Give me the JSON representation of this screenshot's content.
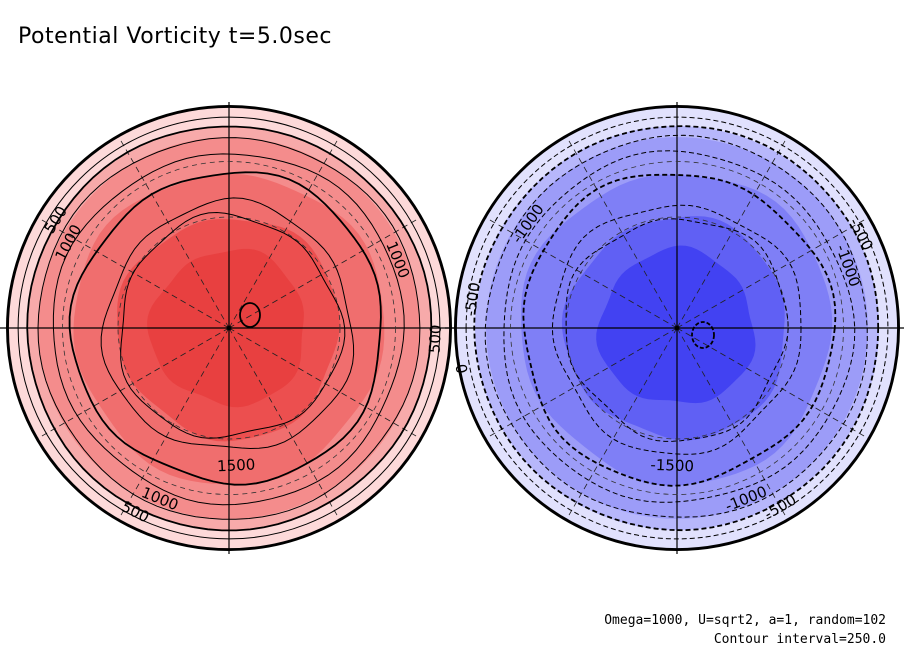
{
  "title": "Potential Vorticity t=5.0sec",
  "footer": {
    "params": "Omega=1000, U=sqrt2, a=1, random=102",
    "interval": "Contour interval=250.0"
  },
  "colors": {
    "positive": [
      "#fdd9d9",
      "#f7aaaa",
      "#f48c8c",
      "#f06e6e",
      "#ec4f4f",
      "#e84040"
    ],
    "negative": [
      "#e1e1fd",
      "#b7b7fb",
      "#9c9cf8",
      "#7f7ff6",
      "#6060f4",
      "#4242f2"
    ]
  },
  "hemispheres": [
    {
      "name": "northern",
      "sign": "positive",
      "labels": [
        {
          "text": "500",
          "r": 0.92,
          "angle": 148
        },
        {
          "text": "1000",
          "r": 0.82,
          "angle": 152
        },
        {
          "text": "1000",
          "r": 0.82,
          "angle": 22
        },
        {
          "text": "500",
          "r": 0.93,
          "angle": -3
        },
        {
          "text": "1500",
          "r": 0.62,
          "angle": -87
        },
        {
          "text": "1000",
          "r": 0.83,
          "angle": -112
        },
        {
          "text": "500",
          "r": 0.93,
          "angle": -117
        }
      ]
    },
    {
      "name": "southern",
      "sign": "negative",
      "labels": [
        {
          "text": "-1000",
          "r": 0.82,
          "angle": 145
        },
        {
          "text": "-500",
          "r": 0.93,
          "angle": 172
        },
        {
          "text": "-0",
          "r": 0.99,
          "angle": 190
        },
        {
          "text": "-500",
          "r": 0.93,
          "angle": 27
        },
        {
          "text": "-1000",
          "r": 0.82,
          "angle": 20
        },
        {
          "text": "-1500",
          "r": 0.62,
          "angle": -92
        },
        {
          "text": "-1000",
          "r": 0.83,
          "angle": -68
        },
        {
          "text": "-500",
          "r": 0.93,
          "angle": -60
        }
      ]
    }
  ]
}
